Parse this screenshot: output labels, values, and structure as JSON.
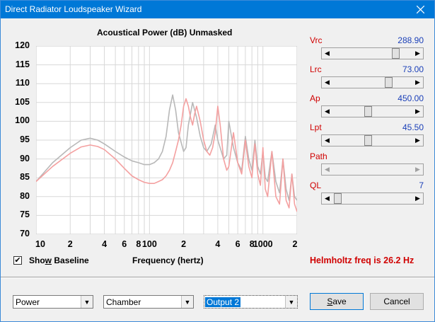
{
  "window": {
    "title": "Direct Radiator Loudspeaker Wizard"
  },
  "chart": {
    "title": "Acoustical Power (dB)   Unmasked",
    "y_ticks": [
      "120",
      "115",
      "110",
      "105",
      "100",
      "95",
      "90",
      "85",
      "80",
      "75",
      "70"
    ],
    "x_ticks": [
      "10",
      "2",
      "4",
      "6",
      "8",
      "100",
      "2",
      "4",
      "6",
      "8",
      "1000",
      "2"
    ],
    "xlabel": "Frequency (hertz)",
    "colors": {
      "baseline": "#b8b8b8",
      "current": "#f4a0a0",
      "grid": "#d8d8d8"
    }
  },
  "chart_data": {
    "type": "line",
    "title": "Acoustical Power (dB)   Unmasked",
    "xlabel": "Frequency (hertz)",
    "ylabel": "",
    "xscale": "log",
    "xlim": [
      10,
      2000
    ],
    "ylim": [
      70,
      120
    ],
    "grid": true,
    "series": [
      {
        "x": [
          10,
          14,
          20,
          25,
          30,
          35,
          40,
          50,
          60,
          70,
          80,
          90,
          100,
          110,
          120,
          130,
          140,
          150,
          160,
          170,
          180,
          200,
          210,
          220,
          240,
          260,
          280,
          300,
          320,
          350,
          380,
          400,
          430,
          450,
          480,
          500,
          550,
          600,
          650,
          700,
          750,
          800,
          850,
          900,
          950,
          1000,
          1050,
          1100,
          1200,
          1300,
          1400,
          1500,
          1600,
          1700,
          1800,
          1900,
          2000
        ],
        "y": [
          84,
          89,
          93,
          95,
          95.5,
          95,
          94,
          92,
          90.5,
          89.5,
          89,
          88.5,
          88.5,
          89,
          90,
          92,
          96,
          103,
          107,
          103,
          97,
          92,
          93,
          99,
          105,
          101,
          96,
          93,
          92,
          94,
          99,
          95,
          92,
          90,
          91,
          100,
          93,
          89,
          87,
          96,
          90,
          87,
          95,
          88,
          86,
          92,
          85,
          84,
          92,
          84,
          81,
          90,
          82,
          79,
          86,
          80,
          79
        ]
      },
      {
        "x": [
          10,
          14,
          20,
          25,
          30,
          35,
          40,
          50,
          60,
          70,
          80,
          90,
          100,
          110,
          120,
          130,
          140,
          150,
          160,
          170,
          180,
          190,
          200,
          210,
          220,
          230,
          240,
          250,
          260,
          280,
          300,
          320,
          340,
          360,
          380,
          400,
          420,
          450,
          480,
          500,
          550,
          600,
          650,
          700,
          750,
          800,
          850,
          900,
          950,
          1000,
          1050,
          1100,
          1200,
          1300,
          1400,
          1500,
          1600,
          1700,
          1800,
          1900,
          2000
        ],
        "y": [
          84,
          88,
          91.5,
          93.2,
          93.7,
          93.3,
          92.5,
          90,
          87.5,
          85.5,
          84.5,
          83.8,
          83.5,
          83.5,
          84,
          84.5,
          85.5,
          87,
          89,
          92,
          95,
          99,
          104,
          106,
          104,
          101,
          99,
          102,
          104,
          100,
          95,
          92,
          91,
          93,
          97,
          104,
          99,
          90,
          87,
          88,
          97,
          89,
          86,
          95,
          88,
          85,
          94,
          86,
          83,
          93,
          82,
          80,
          92,
          80,
          78,
          90,
          79,
          77,
          86,
          78,
          76
        ]
      }
    ]
  },
  "sliders": [
    {
      "label": "Vrc",
      "value": "288.90",
      "level": 0.82,
      "disabled": false
    },
    {
      "label": "Lrc",
      "value": "73.00",
      "level": 0.73,
      "disabled": false
    },
    {
      "label": "Ap",
      "value": "450.00",
      "level": 0.44,
      "disabled": false
    },
    {
      "label": "Lpt",
      "value": "45.50",
      "level": 0.44,
      "disabled": false
    },
    {
      "label": "Path",
      "value": "",
      "level": 0.0,
      "disabled": true
    },
    {
      "label": "QL",
      "value": "7",
      "level": 0.02,
      "disabled": false
    }
  ],
  "baseline": {
    "checkbox_checked": true,
    "label": "Show Baseline"
  },
  "helmholtz": "Helmholtz freq is 26.2 Hz",
  "combos": {
    "c1": "Power",
    "c2": "Chamber",
    "c3": "Output 2"
  },
  "buttons": {
    "save": "Save",
    "cancel": "Cancel"
  }
}
